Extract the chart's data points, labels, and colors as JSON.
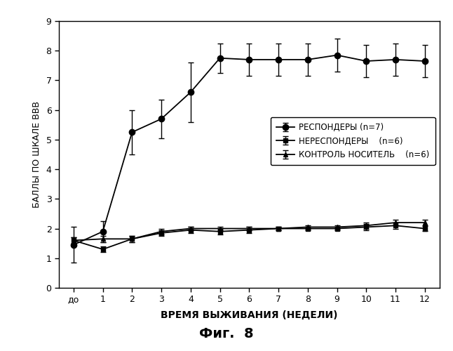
{
  "x_labels": [
    "до",
    "1",
    "2",
    "3",
    "4",
    "5",
    "6",
    "7",
    "8",
    "9",
    "10",
    "11",
    "12"
  ],
  "x_positions": [
    0,
    1,
    2,
    3,
    4,
    5,
    6,
    7,
    8,
    9,
    10,
    11,
    12
  ],
  "responders_y": [
    1.45,
    1.9,
    5.25,
    5.7,
    6.6,
    7.75,
    7.7,
    7.7,
    7.7,
    7.85,
    7.65,
    7.7,
    7.65
  ],
  "responders_err": [
    0.6,
    0.35,
    0.75,
    0.65,
    1.0,
    0.5,
    0.55,
    0.55,
    0.55,
    0.55,
    0.55,
    0.55,
    0.55
  ],
  "nonresponders_y": [
    1.6,
    1.3,
    1.65,
    1.85,
    1.95,
    1.9,
    1.95,
    2.0,
    2.0,
    2.0,
    2.05,
    2.1,
    2.0
  ],
  "nonresponders_err": [
    0.1,
    0.1,
    0.1,
    0.1,
    0.1,
    0.1,
    0.1,
    0.05,
    0.05,
    0.05,
    0.1,
    0.1,
    0.08
  ],
  "control_y": [
    1.6,
    1.65,
    1.65,
    1.9,
    2.0,
    2.0,
    2.0,
    2.0,
    2.05,
    2.05,
    2.1,
    2.2,
    2.2
  ],
  "control_err": [
    0.1,
    0.1,
    0.1,
    0.1,
    0.05,
    0.05,
    0.05,
    0.05,
    0.05,
    0.05,
    0.1,
    0.1,
    0.1
  ],
  "ylim": [
    0,
    9
  ],
  "yticks": [
    0,
    1,
    2,
    3,
    4,
    5,
    6,
    7,
    8,
    9
  ],
  "ylabel": "БАЛЛЫ ПО ШКАЛЕ ВВВ",
  "xlabel": "ВРЕМЯ ВЫЖИВАНИЯ (НЕДЕЛИ)",
  "caption": "Фиг.  8",
  "legend_labels": [
    "РЕСПОНДЕРЫ (n=7)",
    "НЕРЕСПОНДЕРЫ    (n=6)",
    "КОНТРОЛЬ НОСИТЕЛЬ    (n=6)"
  ],
  "line_color": "#000000",
  "bg_color": "#ffffff",
  "ylabel_fontsize": 9,
  "xlabel_fontsize": 10,
  "tick_fontsize": 9,
  "legend_fontsize": 8.5,
  "caption_fontsize": 14
}
